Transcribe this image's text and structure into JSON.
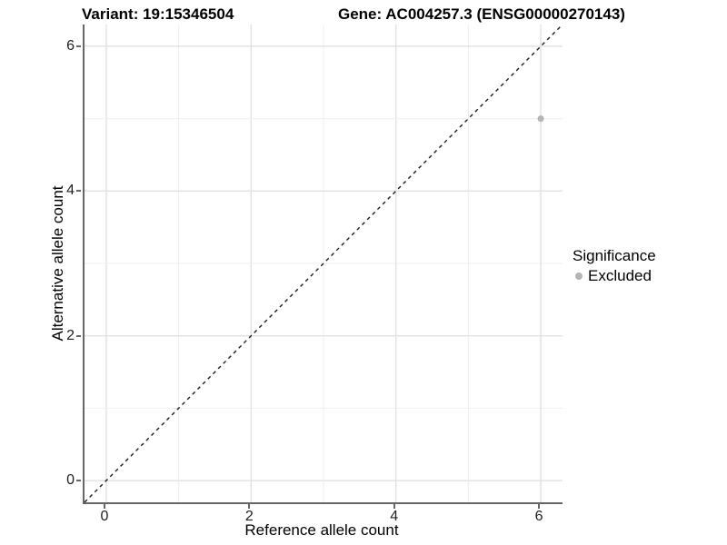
{
  "chart_data": {
    "type": "scatter",
    "title_left": "Variant: 19:15346504",
    "title_right": "Gene: AC004257.3 (ENSG00000270143)",
    "xlabel": "Reference allele count",
    "ylabel": "Alternative allele count",
    "xlim": [
      -0.3,
      6.3
    ],
    "ylim": [
      -0.3,
      6.3
    ],
    "x_ticks": [
      0,
      2,
      4,
      6
    ],
    "y_ticks": [
      0,
      2,
      4,
      6
    ],
    "grid_lines": [
      0,
      1,
      2,
      3,
      4,
      5,
      6
    ],
    "grid": "on",
    "legend": {
      "title": "Significance",
      "position": "right",
      "entries": [
        {
          "label": "Excluded",
          "color": "#b4b4b4"
        }
      ]
    },
    "series": [
      {
        "name": "Excluded",
        "color": "#b4b4b4",
        "points": [
          {
            "x": 6,
            "y": 5
          }
        ]
      }
    ],
    "reference_line": {
      "style": "dashed",
      "slope": 1,
      "intercept": 0,
      "color": "#1a1a1a"
    },
    "colors": {
      "grid_major": "#e3e3e3",
      "grid_minor": "#efefef",
      "axis": "#666666",
      "tick_label": "#202020"
    }
  }
}
